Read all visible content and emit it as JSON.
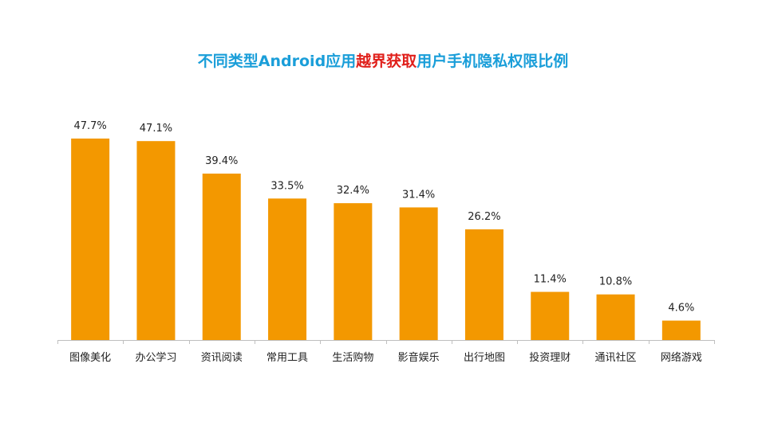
{
  "chart_data": {
    "type": "bar",
    "title": "不同类型Android应用越界获取用户手机隐私权限比例",
    "title_parts": [
      {
        "text": "不同类型Android应用",
        "highlight": false
      },
      {
        "text": "越界获取",
        "highlight": true
      },
      {
        "text": "用户手机隐私权限比例",
        "highlight": false
      }
    ],
    "categories": [
      "图像美化",
      "办公学习",
      "资讯阅读",
      "常用工具",
      "生活购物",
      "影音娱乐",
      "出行地图",
      "投资理财",
      "通讯社区",
      "网络游戏"
    ],
    "values": [
      47.7,
      47.1,
      39.4,
      33.5,
      32.4,
      31.4,
      26.2,
      11.4,
      10.8,
      4.6
    ],
    "data_labels": [
      "47.7%",
      "47.1%",
      "39.4%",
      "33.5%",
      "32.4%",
      "31.4%",
      "26.2%",
      "11.4%",
      "10.8%",
      "4.6%"
    ],
    "ylim": [
      0,
      47.7
    ],
    "grid": false,
    "legend": "none",
    "xlabel": "",
    "ylabel": ""
  },
  "colors": {
    "bar": "#f39800",
    "title": "#1a9ed9",
    "title_highlight": "#e0201b",
    "axis": "#bfbfbf",
    "text": "#222222"
  }
}
